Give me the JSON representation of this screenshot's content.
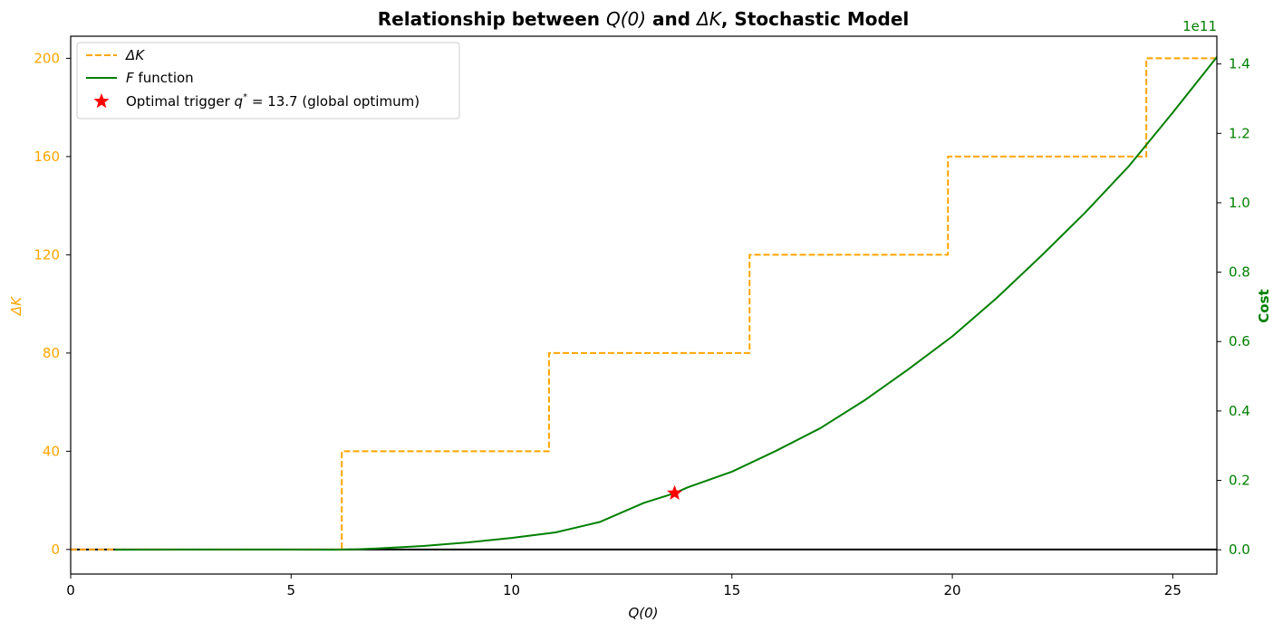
{
  "chart_data": {
    "type": "line",
    "title": {
      "prefix": "Relationship between ",
      "q0": "Q(0)",
      "middle": " and ",
      "dk": "ΔK",
      "suffix": ", Stochastic Model"
    },
    "xlabel": "Q(0)",
    "ylabel_left": "ΔK",
    "ylabel_right": "Cost",
    "right_axis_offset": "1e11",
    "xlim": [
      0,
      26
    ],
    "ylim_left": [
      -10,
      209
    ],
    "ylim_right": [
      -0.07,
      1.48
    ],
    "x_ticks": [
      {
        "value": 0,
        "label": "0"
      },
      {
        "value": 5,
        "label": "5"
      },
      {
        "value": 10,
        "label": "10"
      },
      {
        "value": 15,
        "label": "15"
      },
      {
        "value": 20,
        "label": "20"
      },
      {
        "value": 25,
        "label": "25"
      }
    ],
    "left_ticks": [
      {
        "value": 0,
        "label": "0"
      },
      {
        "value": 40,
        "label": "40"
      },
      {
        "value": 80,
        "label": "80"
      },
      {
        "value": 120,
        "label": "120"
      },
      {
        "value": 160,
        "label": "160"
      },
      {
        "value": 200,
        "label": "200"
      }
    ],
    "right_ticks": [
      {
        "value": 0.0,
        "label": "0.0"
      },
      {
        "value": 0.2,
        "label": "0.2"
      },
      {
        "value": 0.4,
        "label": "0.4"
      },
      {
        "value": 0.6,
        "label": "0.6"
      },
      {
        "value": 0.8,
        "label": "0.8"
      },
      {
        "value": 1.0,
        "label": "1.0"
      },
      {
        "value": 1.2,
        "label": "1.2"
      },
      {
        "value": 1.4,
        "label": "1.4"
      }
    ],
    "series": [
      {
        "name": "ΔK",
        "axis": "left",
        "style": "dashed-step",
        "color": "#FFA500",
        "points": [
          [
            0,
            0
          ],
          [
            6.15,
            0
          ],
          [
            6.15,
            40
          ],
          [
            10.85,
            40
          ],
          [
            10.85,
            80
          ],
          [
            15.4,
            80
          ],
          [
            15.4,
            120
          ],
          [
            19.9,
            120
          ],
          [
            19.9,
            160
          ],
          [
            24.4,
            160
          ],
          [
            24.4,
            200
          ],
          [
            26,
            200
          ]
        ]
      },
      {
        "name": "F function",
        "axis": "right",
        "style": "solid",
        "color": "#008000",
        "points": [
          [
            1,
            0
          ],
          [
            2.5,
            0.0003
          ],
          [
            4,
            0.0005
          ],
          [
            5,
            0.0003
          ],
          [
            6,
            0.0002
          ],
          [
            6.5,
            0.0015
          ],
          [
            7,
            0.004
          ],
          [
            8,
            0.011
          ],
          [
            9,
            0.021
          ],
          [
            10,
            0.034
          ],
          [
            11,
            0.05
          ],
          [
            12,
            0.08
          ],
          [
            13,
            0.135
          ],
          [
            13.7,
            0.163
          ],
          [
            14,
            0.18
          ],
          [
            15,
            0.225
          ],
          [
            16,
            0.285
          ],
          [
            17,
            0.35
          ],
          [
            18,
            0.43
          ],
          [
            19,
            0.52
          ],
          [
            20,
            0.615
          ],
          [
            21,
            0.725
          ],
          [
            22,
            0.845
          ],
          [
            23,
            0.97
          ],
          [
            24,
            1.105
          ],
          [
            25,
            1.26
          ],
          [
            26,
            1.42
          ]
        ]
      }
    ],
    "optimum": {
      "x": 13.7,
      "cost": 0.163,
      "color": "#FF0000",
      "legend_prefix": "Optimal trigger ",
      "legend_var": "q",
      "legend_sup": "*",
      "legend_suffix": " = 13.7 (global optimum)"
    },
    "zero_line": {
      "value": 0,
      "color": "#000000"
    },
    "legend": {
      "placement": "top-left",
      "entries": [
        {
          "label": "ΔK"
        },
        {
          "label_italic": "F",
          "label_rest": " function"
        },
        {
          "label": "Optimal trigger q* = 13.7 (global optimum)"
        }
      ]
    },
    "colors": {
      "left_axis": "#FFA500",
      "right_axis": "#008000",
      "frame": "#000000"
    }
  }
}
